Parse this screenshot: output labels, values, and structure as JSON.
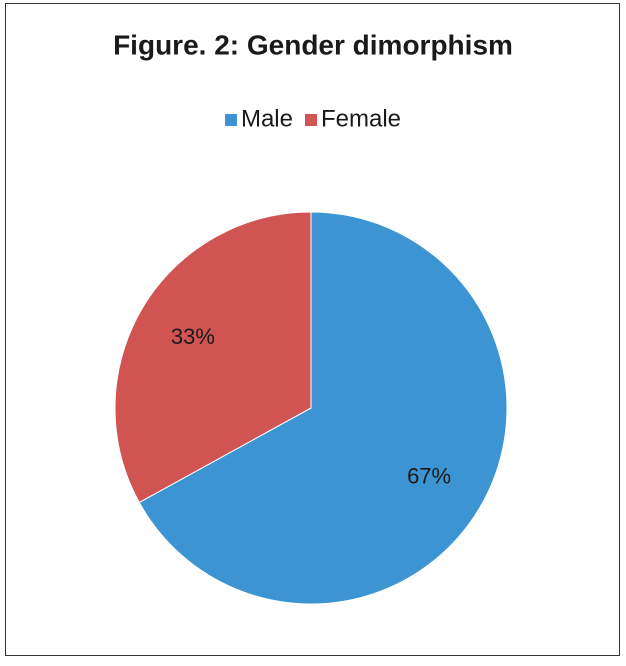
{
  "chart_data": {
    "type": "pie",
    "title": "Figure. 2: Gender dimorphism",
    "categories": [
      "Male",
      "Female"
    ],
    "values": [
      67,
      33
    ],
    "value_labels": [
      "67%",
      "33%"
    ],
    "colors": [
      "#3d94d2",
      "#d05452"
    ],
    "legend": "top"
  }
}
